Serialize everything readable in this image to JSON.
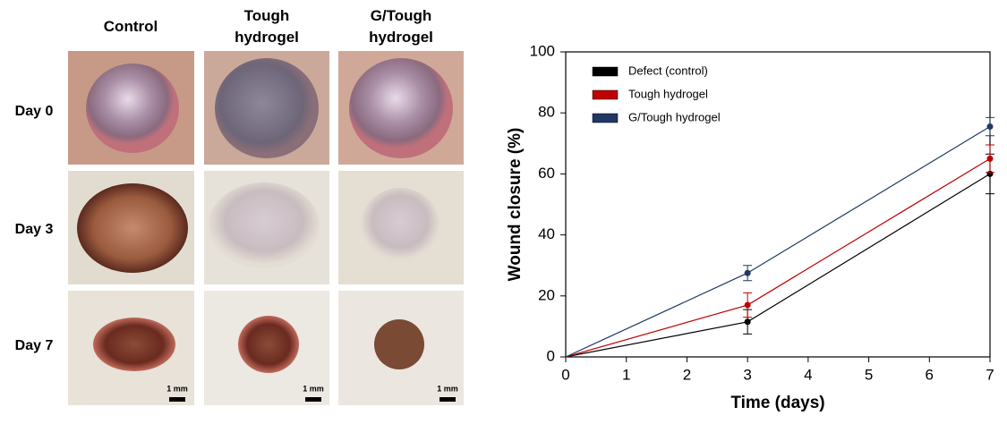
{
  "photo_grid": {
    "columns": [
      "Control",
      "Tough hydrogel",
      "G/Tough hydrogel"
    ],
    "rows": [
      "Day 0",
      "Day 3",
      "Day 7"
    ],
    "scale_bar": "1 mm"
  },
  "chart_data": {
    "type": "line",
    "x_label": "Time (days)",
    "y_label": "Wound closure  (%)",
    "x": [
      0,
      3,
      7
    ],
    "series": [
      {
        "name": "Defect (control)",
        "color": "#000000",
        "values": [
          0,
          11.5,
          60
        ],
        "errors": [
          null,
          4,
          6.5
        ]
      },
      {
        "name": "Tough hydrogel",
        "color": "#c00000",
        "values": [
          0,
          17,
          65
        ],
        "errors": [
          null,
          4,
          4.5
        ]
      },
      {
        "name": "G/Tough hydrogel",
        "color": "#1f3864",
        "values": [
          0,
          27.5,
          75.5
        ],
        "errors": [
          null,
          2.5,
          3
        ]
      }
    ],
    "xlim": [
      0,
      7
    ],
    "xticks": [
      0,
      1,
      2,
      3,
      4,
      5,
      6,
      7
    ],
    "ylim": [
      0,
      100
    ],
    "yticks": [
      0,
      20,
      40,
      60,
      80,
      100
    ],
    "legend": "upper-left"
  }
}
